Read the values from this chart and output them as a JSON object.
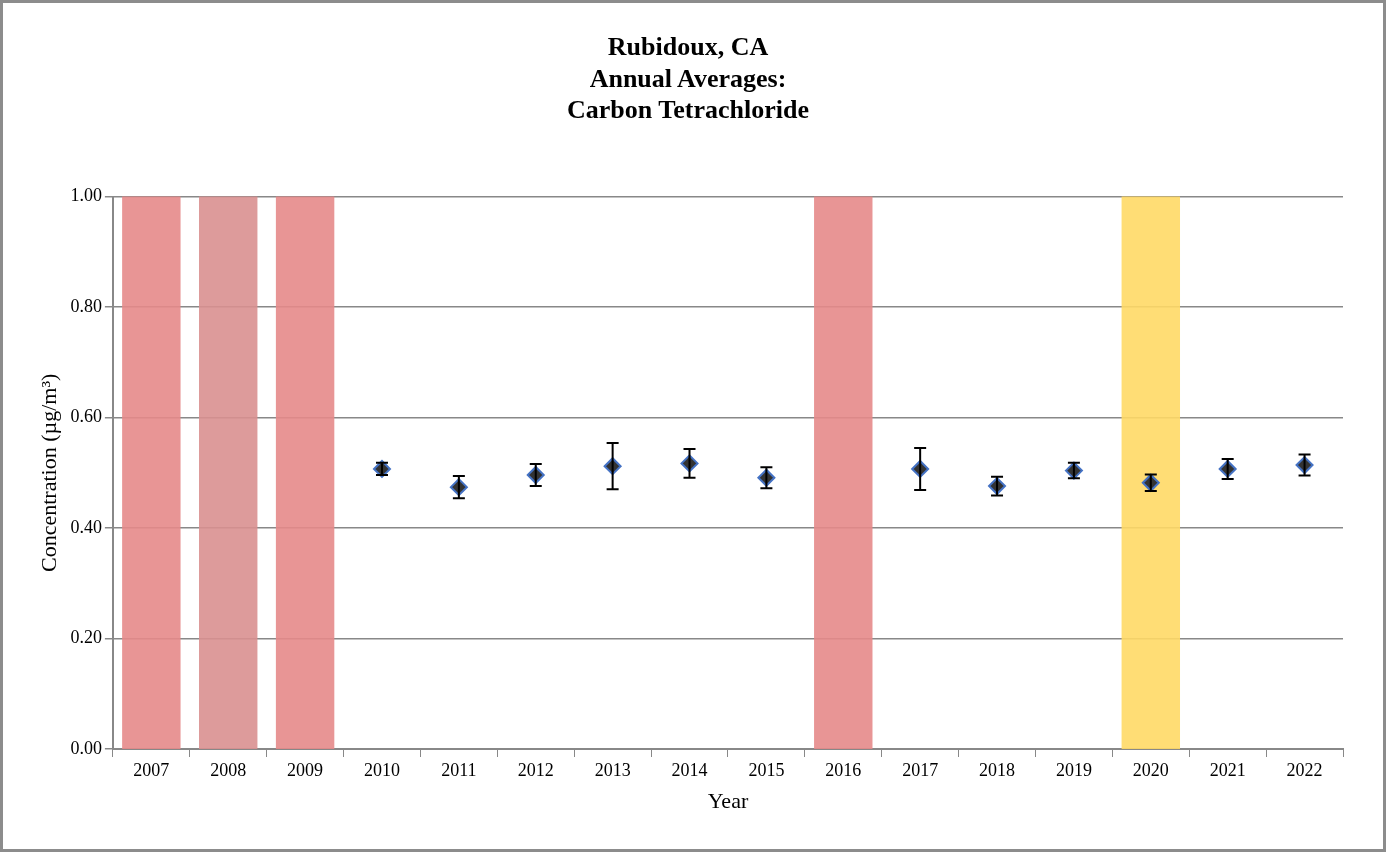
{
  "chart_data": {
    "type": "scatter",
    "title": "Rubidoux, CA\nAnnual Averages:\nCarbon Tetrachloride",
    "xlabel": "Year",
    "ylabel": "Concentration (µg/m³)",
    "categories": [
      "2007",
      "2008",
      "2009",
      "2010",
      "2011",
      "2012",
      "2013",
      "2014",
      "2015",
      "2016",
      "2017",
      "2018",
      "2019",
      "2020",
      "2021",
      "2022"
    ],
    "series": [
      {
        "color": "#333333",
        "values": [
          null,
          null,
          null,
          0.507,
          0.474,
          0.496,
          0.512,
          0.517,
          0.491,
          null,
          0.507,
          0.476,
          0.504,
          0.482,
          0.507,
          0.514
        ],
        "errors": [
          null,
          null,
          null,
          0.011,
          0.02,
          0.02,
          0.042,
          0.026,
          0.019,
          null,
          0.038,
          0.017,
          0.014,
          0.015,
          0.018,
          0.019
        ]
      }
    ],
    "ylim": [
      0,
      1
    ],
    "yticks": [
      {
        "value": 0,
        "label": "0.00"
      },
      {
        "value": 0.2,
        "label": "0.20"
      },
      {
        "value": 0.4,
        "label": "0.40"
      },
      {
        "value": 0.6,
        "label": "0.60"
      },
      {
        "value": 0.8,
        "label": "0.80"
      },
      {
        "value": 1,
        "label": "1.00"
      }
    ],
    "bands": [
      {
        "axis": "x",
        "from": "2007",
        "to": "2007",
        "color": "#e58a8a"
      },
      {
        "axis": "x",
        "from": "2008",
        "to": "2008",
        "color": "#d99090"
      },
      {
        "axis": "x",
        "from": "2009",
        "to": "2009",
        "color": "#e58a8a"
      },
      {
        "axis": "x",
        "from": "2016",
        "to": "2016",
        "color": "#e58a8a"
      },
      {
        "axis": "x",
        "from": "2020",
        "to": "2020",
        "color": "#ffd966"
      }
    ],
    "grid": "y",
    "marker": "diamond"
  }
}
